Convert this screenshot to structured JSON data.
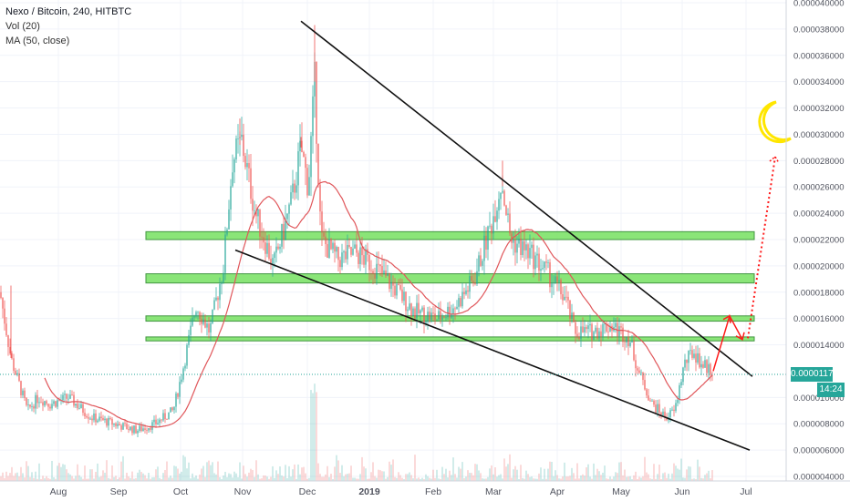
{
  "legend": {
    "symbol": "Nexo / Bitcoin, 240, HITBTC",
    "vol": "Vol (20)",
    "ma": "MA (50, close)"
  },
  "last_price_label": "0.00001175",
  "countdown": "14:24",
  "colors": {
    "up": "#26a69a",
    "down": "#ef5350",
    "ma": "#e0575b",
    "zone_fill": "#7ee36a",
    "zone_stroke": "#2e8b2e",
    "trendline": "#111111",
    "arrow": "#ff1a1a",
    "moon": "#ffe600"
  },
  "chart_data": {
    "type": "candlestick",
    "y_axis": {
      "scale": "linear",
      "ylim": [
        4e-06,
        4e-05
      ],
      "ticks": [
        "0.000040000",
        "0.000038000",
        "0.000036000",
        "0.000034000",
        "0.000032000",
        "0.000030000",
        "0.000028000",
        "0.000026000",
        "0.000024000",
        "0.000022000",
        "0.000020000",
        "0.000018000",
        "0.000016000",
        "0.000014000",
        "0.000010000",
        "0.000008000",
        "0.000006000",
        "0.000004000"
      ]
    },
    "x_axis": {
      "ticks": [
        "Aug",
        "Sep",
        "Oct",
        "Nov",
        "Dec",
        "2019",
        "Feb",
        "Mar",
        "Apr",
        "May",
        "Jun",
        "Jul"
      ]
    },
    "price_anchors": [
      [
        0,
        1.8e-05
      ],
      [
        12,
        1.3e-05
      ],
      [
        30,
        9e-06
      ],
      [
        42,
        1e-05
      ],
      [
        55,
        9.5e-06
      ],
      [
        75,
        1e-05
      ],
      [
        100,
        8.5e-06
      ],
      [
        125,
        8e-06
      ],
      [
        150,
        7.5e-06
      ],
      [
        170,
        8e-06
      ],
      [
        190,
        9e-06
      ],
      [
        200,
        1.2e-05
      ],
      [
        215,
        1.7e-05
      ],
      [
        230,
        1.5e-05
      ],
      [
        245,
        2e-05
      ],
      [
        255,
        2.8e-05
      ],
      [
        265,
        2.95e-05
      ],
      [
        280,
        2.4e-05
      ],
      [
        300,
        2e-05
      ],
      [
        320,
        2.5e-05
      ],
      [
        330,
        2.9e-05
      ],
      [
        338,
        2.6e-05
      ],
      [
        345,
        3.4e-05
      ],
      [
        352,
        2.2e-05
      ],
      [
        370,
        2.05e-05
      ],
      [
        390,
        2.1e-05
      ],
      [
        410,
        2e-05
      ],
      [
        430,
        1.85e-05
      ],
      [
        455,
        1.65e-05
      ],
      [
        480,
        1.6e-05
      ],
      [
        500,
        1.7e-05
      ],
      [
        520,
        1.9e-05
      ],
      [
        540,
        2.35e-05
      ],
      [
        550,
        2.65e-05
      ],
      [
        560,
        2.2e-05
      ],
      [
        580,
        2.1e-05
      ],
      [
        600,
        1.95e-05
      ],
      [
        620,
        1.75e-05
      ],
      [
        630,
        1.5e-05
      ],
      [
        650,
        1.5e-05
      ],
      [
        670,
        1.55e-05
      ],
      [
        690,
        1.45e-05
      ],
      [
        700,
        1.2e-05
      ],
      [
        715,
        9.5e-06
      ],
      [
        730,
        8.5e-06
      ],
      [
        740,
        9e-06
      ],
      [
        750,
        1.25e-05
      ],
      [
        760,
        1.35e-05
      ],
      [
        770,
        1.25e-05
      ],
      [
        782,
        1.2e-05
      ]
    ],
    "zones": [
      {
        "low": 2.2e-05,
        "high": 2.26e-05
      },
      {
        "low": 1.87e-05,
        "high": 1.94e-05
      },
      {
        "low": 1.58e-05,
        "high": 1.62e-05
      },
      {
        "low": 1.43e-05,
        "high": 1.46e-05
      }
    ],
    "trendlines": [
      {
        "from": [
          330,
          3.86e-05
        ],
        "to": [
          825,
          1.16e-05
        ]
      },
      {
        "from": [
          258,
          2.12e-05
        ],
        "to": [
          822,
          6e-06
        ]
      }
    ],
    "projection": {
      "solid": [
        [
          782,
          1.2e-05
        ],
        [
          800,
          1.62e-05
        ],
        [
          814,
          1.44e-05
        ]
      ],
      "dotted": [
        [
          820,
          1.45e-05
        ],
        [
          850,
          2.83e-05
        ]
      ]
    },
    "current_price": 1.175e-05
  }
}
